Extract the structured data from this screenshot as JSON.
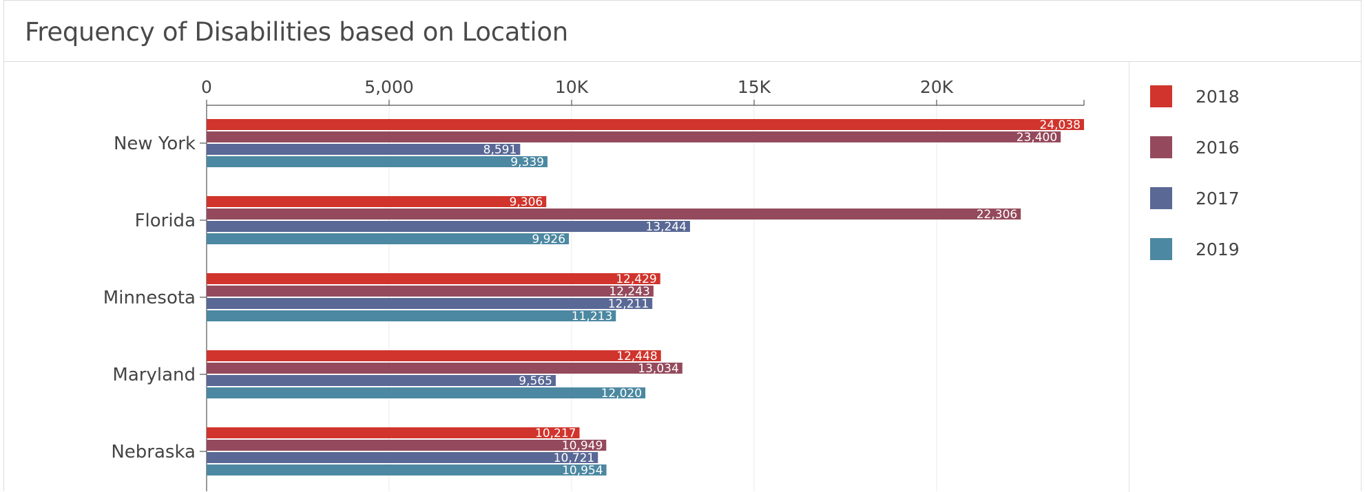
{
  "title": "Frequency of Disabilities based on Location",
  "chart_data": {
    "type": "bar",
    "orientation": "horizontal",
    "title": "Frequency of Disabilities based on Location",
    "xlabel": "",
    "ylabel": "",
    "xlim": [
      0,
      24038
    ],
    "x_ticks": [
      {
        "value": 0,
        "label": "0"
      },
      {
        "value": 5000,
        "label": "5,000"
      },
      {
        "value": 10000,
        "label": "10K"
      },
      {
        "value": 15000,
        "label": "15K"
      },
      {
        "value": 20000,
        "label": "20K"
      }
    ],
    "categories": [
      "New York",
      "Florida",
      "Minnesota",
      "Maryland",
      "Nebraska"
    ],
    "series": [
      {
        "name": "2018",
        "color": "#d0342c",
        "values": [
          24038,
          9306,
          12429,
          12448,
          10217
        ],
        "labels": [
          "24,038",
          "9,306",
          "12,429",
          "12,448",
          "10,217"
        ]
      },
      {
        "name": "2016",
        "color": "#944a5c",
        "values": [
          23400,
          22306,
          12243,
          13034,
          10949
        ],
        "labels": [
          "23,400",
          "22,306",
          "12,243",
          "13,034",
          "10,949"
        ]
      },
      {
        "name": "2017",
        "color": "#5a6895",
        "values": [
          8591,
          13244,
          12211,
          9565,
          10721
        ],
        "labels": [
          "8,591",
          "13,244",
          "12,211",
          "9,565",
          "10,721"
        ]
      },
      {
        "name": "2019",
        "color": "#4c88a1",
        "values": [
          9339,
          9926,
          11213,
          12020,
          10954
        ],
        "labels": [
          "9,339",
          "9,926",
          "11,213",
          "12,020",
          "10,954"
        ]
      }
    ],
    "grid": true,
    "legend_position": "right"
  }
}
